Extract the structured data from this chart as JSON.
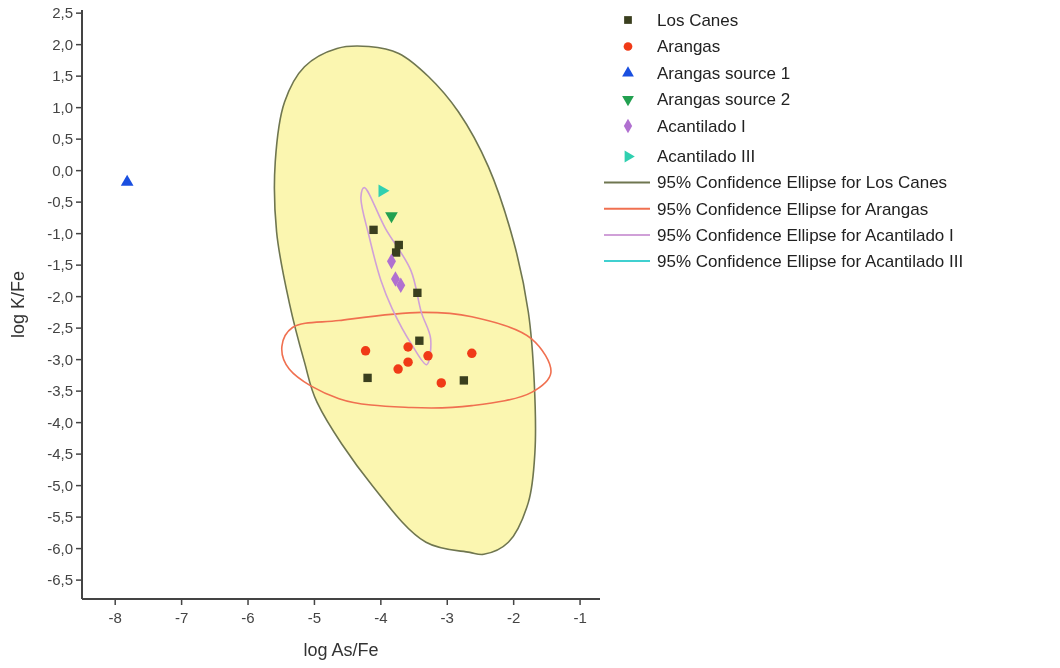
{
  "chart_data": {
    "type": "scatter",
    "xlabel": "log As/Fe",
    "ylabel": "log K/Fe",
    "xlim": [
      -8.5,
      -0.7
    ],
    "ylim": [
      -6.8,
      2.55
    ],
    "xticks": [
      -8,
      -7,
      -6,
      -5,
      -4,
      -3,
      -2,
      -1
    ],
    "yticks": [
      {
        "value": 2.5,
        "label": "2,5"
      },
      {
        "value": 2,
        "label": "2,0"
      },
      {
        "value": 1.5,
        "label": "1,5"
      },
      {
        "value": 1,
        "label": "1,0"
      },
      {
        "value": 0.5,
        "label": "0,5"
      },
      {
        "value": 0,
        "label": "0,0"
      },
      {
        "value": -0.5,
        "label": "-0,5"
      },
      {
        "value": -1,
        "label": "-1,0"
      },
      {
        "value": -1.5,
        "label": "-1,5"
      },
      {
        "value": -2,
        "label": "-2,0"
      },
      {
        "value": -2.5,
        "label": "-2,5"
      },
      {
        "value": -3,
        "label": "-3,0"
      },
      {
        "value": -3.5,
        "label": "-3,5"
      },
      {
        "value": -4,
        "label": "-4,0"
      },
      {
        "value": -4.5,
        "label": "-4,5"
      },
      {
        "value": -5,
        "label": "-5,0"
      },
      {
        "value": -5.5,
        "label": "-5,5"
      },
      {
        "value": -6,
        "label": "-6,0"
      },
      {
        "value": -6.5,
        "label": "-6,5"
      }
    ],
    "legend": "right",
    "series": [
      {
        "name": "Los Canes",
        "marker": "square",
        "color": "#3a3f1e",
        "x": [
          -4.11,
          -3.73,
          -3.77,
          -3.45,
          -3.42,
          -4.2,
          -2.75
        ],
        "values": [
          -0.94,
          -1.18,
          -1.3,
          -1.94,
          -2.7,
          -3.29,
          -3.33
        ]
      },
      {
        "name": "Arangas",
        "marker": "circle",
        "color": "#f03a17",
        "x": [
          -4.23,
          -3.59,
          -3.29,
          -2.63,
          -3.59,
          -3.74,
          -3.09
        ],
        "values": [
          -2.86,
          -2.8,
          -2.94,
          -2.9,
          -3.04,
          -3.15,
          -3.37
        ]
      },
      {
        "name": "Arangas source 1",
        "marker": "triangle",
        "color": "#1a4fe0",
        "x": [
          -7.82
        ],
        "values": [
          -0.18
        ]
      },
      {
        "name": "Arangas source 2",
        "marker": "triangle-down",
        "color": "#22a050",
        "x": [
          -3.84
        ],
        "values": [
          -0.72
        ]
      },
      {
        "name": "Acantilado I",
        "marker": "diamond",
        "color": "#b070d0",
        "x": [
          -3.84,
          -3.78,
          -3.7
        ],
        "values": [
          -1.44,
          -1.72,
          -1.82
        ]
      },
      {
        "name": "Acantilado III",
        "marker": "triangle-right",
        "color": "#30d0b0",
        "x": [
          -3.98
        ],
        "values": [
          -0.32
        ]
      },
      {
        "name": "95% Confidence Ellipse for Los Canes",
        "type": "line",
        "color": "#6f7650"
      },
      {
        "name": "95% Confidence Ellipse for Arangas",
        "type": "line",
        "color": "#f07050"
      },
      {
        "name": "95% Confidence Ellipse for Acantilado I",
        "type": "line",
        "color": "#d0a0d8"
      },
      {
        "name": "95% Confidence Ellipse for Acantilado III",
        "type": "line",
        "color": "#40d0d0"
      }
    ]
  }
}
